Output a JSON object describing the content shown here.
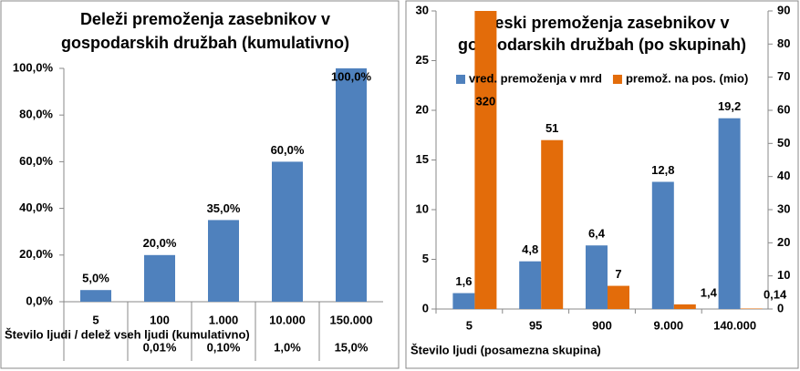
{
  "chart_data": [
    {
      "type": "bar",
      "title": [
        "Deleži premoženja zasebnikov v",
        "gospodarskih družbah (kumulativno)"
      ],
      "categories": [
        "5",
        "100",
        "1.000",
        "10.000",
        "150.000"
      ],
      "sublabels": [
        null,
        "0,01%",
        "0,10%",
        "1,0%",
        "15,0%"
      ],
      "x_label": "Število ljudi / delež vseh ljudi (kumulativno)",
      "values": [
        5,
        20,
        35,
        60,
        100
      ],
      "value_labels": [
        "5,0%",
        "20,0%",
        "35,0%",
        "60,0%",
        "100,0%"
      ],
      "color": "#4f81bd",
      "ylim": [
        0,
        100
      ],
      "yticks": [
        {
          "value": 0,
          "label": "0,0%"
        },
        {
          "value": 20,
          "label": "20,0%"
        },
        {
          "value": 40,
          "label": "40,0%"
        },
        {
          "value": 60,
          "label": "60,0%"
        },
        {
          "value": 80,
          "label": "80,0%"
        },
        {
          "value": 100,
          "label": "100,0%"
        }
      ]
    },
    {
      "type": "bar",
      "title": [
        "Zneski premoženja zasebnikov v",
        "gospodarskih družbah (po skupinah)"
      ],
      "categories": [
        "5",
        "95",
        "900",
        "9.000",
        "140.000"
      ],
      "x_label": "Število ljudi (posamezna skupina)",
      "series": [
        {
          "name": "vred. premoženja v mrd",
          "color": "#4f81bd",
          "values": [
            1.6,
            4.8,
            6.4,
            12.8,
            19.2
          ],
          "value_labels": [
            "1,6",
            "4,8",
            "6,4",
            "12,8",
            "19,2"
          ]
        },
        {
          "name": "premož. na pos. (mio)",
          "color": "#e36c0a",
          "axis": "y2",
          "values": [
            320,
            51,
            7,
            1.4,
            0.14
          ],
          "value_labels": [
            "320",
            "51",
            "7",
            "1,4",
            "0,14"
          ]
        }
      ],
      "ylim": [
        0,
        30
      ],
      "yticks": [
        0,
        5,
        10,
        15,
        20,
        25,
        30
      ],
      "y2lim": [
        0,
        90
      ],
      "y2ticks": [
        0,
        10,
        20,
        30,
        40,
        50,
        60,
        70,
        80,
        90
      ]
    }
  ]
}
